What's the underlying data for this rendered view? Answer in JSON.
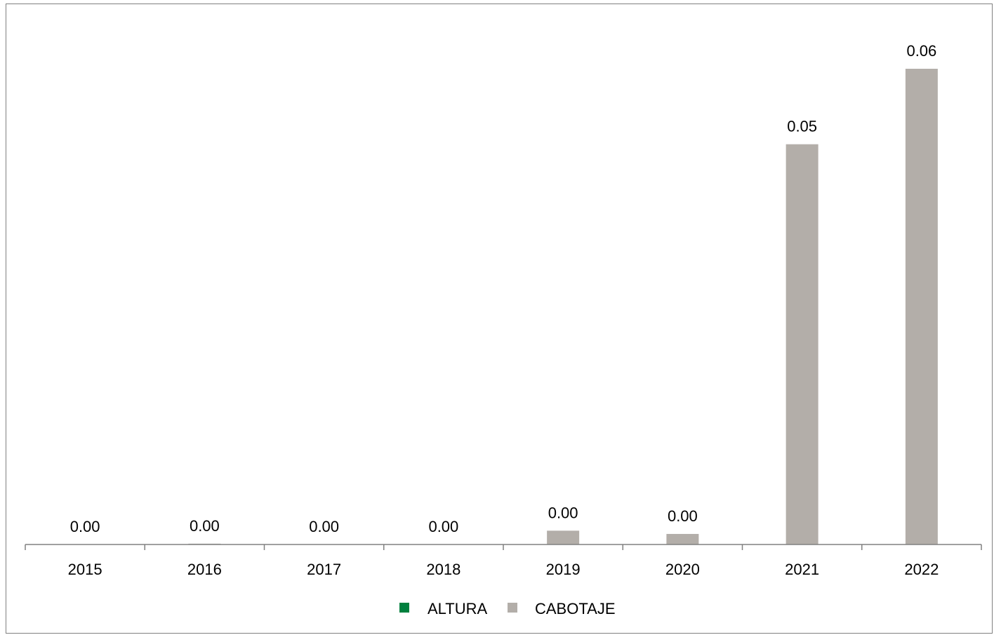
{
  "chart_data": {
    "type": "bar",
    "categories": [
      "2015",
      "2016",
      "2017",
      "2018",
      "2019",
      "2020",
      "2021",
      "2022"
    ],
    "series": [
      {
        "name": "ALTURA",
        "color": "#00803E",
        "values": [
          0,
          0,
          0,
          0,
          0,
          0,
          0,
          0
        ]
      },
      {
        "name": "CABOTAJE",
        "color": "#B3AEA9",
        "values": [
          0.0,
          0.0001,
          0.0,
          0.0,
          0.0017,
          0.0013,
          0.0493,
          0.0586
        ],
        "data_labels": [
          "0.00",
          "0.00",
          "0.00",
          "0.00",
          "0.00",
          "0.00",
          "0.05",
          "0.06"
        ]
      }
    ],
    "ylim": [
      0,
      0.0586
    ],
    "grid": false,
    "legend": "bottom",
    "title": "",
    "xlabel": "",
    "ylabel": ""
  }
}
